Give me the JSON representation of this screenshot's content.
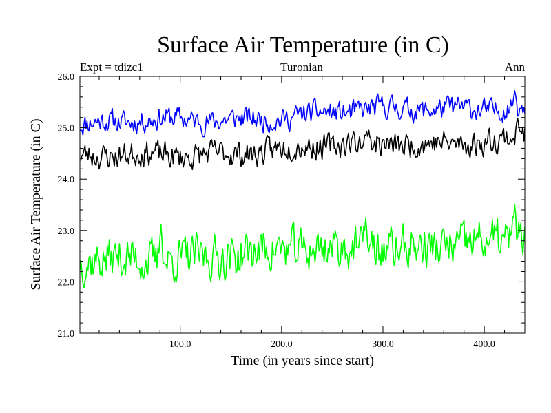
{
  "chart_data": {
    "type": "line",
    "title": "Surface Air Temperature (in C)",
    "subtitle_left": "Expt = tdizc1",
    "subtitle_center": "Turonian",
    "subtitle_right": "Ann",
    "xlabel": "Time (in years since start)",
    "ylabel": "Surface Air Temperature (in C)",
    "xlim": [
      1,
      440
    ],
    "ylim": [
      21.0,
      26.0
    ],
    "x_ticks": [
      100.0,
      200.0,
      300.0,
      400.0
    ],
    "x_tick_labels": [
      "100.0",
      "200.0",
      "300.0",
      "400.0"
    ],
    "y_ticks": [
      21.0,
      22.0,
      23.0,
      24.0,
      25.0,
      26.0
    ],
    "y_tick_labels": [
      "21.0",
      "22.0",
      "23.0",
      "24.0",
      "25.0",
      "26.0"
    ],
    "series": [
      {
        "name": "series-blue",
        "color": "#0000ff",
        "n": 440,
        "start": 25.05,
        "end": 25.45,
        "spread": 0.22,
        "seed": 11,
        "peaks": [
          {
            "x": 430,
            "y": 25.72
          }
        ]
      },
      {
        "name": "series-black",
        "color": "#000000",
        "n": 440,
        "start": 24.4,
        "end": 24.8,
        "spread": 0.25,
        "seed": 23,
        "peaks": [
          {
            "x": 433,
            "y": 25.18
          },
          {
            "x": 286,
            "y": 24.95
          }
        ]
      },
      {
        "name": "series-green",
        "color": "#00ff00",
        "n": 440,
        "start": 22.4,
        "end": 22.8,
        "spread": 0.42,
        "seed": 37,
        "peaks": [
          {
            "x": 430,
            "y": 23.5
          },
          {
            "x": 81,
            "y": 23.12
          },
          {
            "x": 283,
            "y": 23.25
          }
        ]
      }
    ]
  }
}
